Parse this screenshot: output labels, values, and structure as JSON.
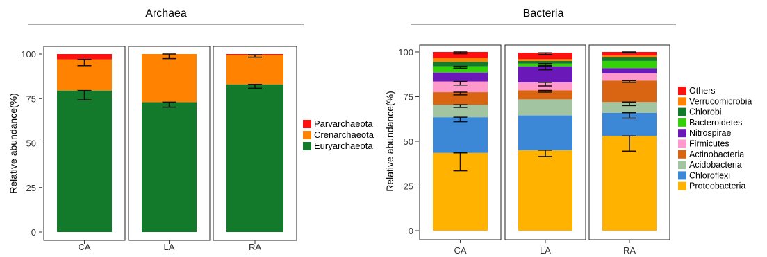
{
  "chart_data": [
    {
      "type": "bar",
      "stacked": true,
      "title": "Archaea",
      "xlabel": "",
      "ylabel": "Relative abundance(%)",
      "ylim": [
        0,
        100
      ],
      "yticks": [
        0,
        25,
        50,
        75,
        100
      ],
      "categories": [
        "CA",
        "LA",
        "RA"
      ],
      "legend_position": "right",
      "series": [
        {
          "name": "Euryarchaeota",
          "color": "#127A2A",
          "values": [
            79.5,
            73.0,
            83.0
          ],
          "error": [
            5.2,
            2.8,
            2.2
          ]
        },
        {
          "name": "Crenarchaeota",
          "color": "#FF8200",
          "values": [
            17.5,
            27.0,
            16.5
          ],
          "error": [
            3.5,
            2.6,
            1.3
          ]
        },
        {
          "name": "Parvarchaeota",
          "color": "#FF1010",
          "values": [
            3.0,
            0.0,
            0.5
          ],
          "error": [
            0.0,
            0.0,
            0.0
          ]
        }
      ]
    },
    {
      "type": "bar",
      "stacked": true,
      "title": "Bacteria",
      "xlabel": "",
      "ylabel": "Relative abundance(%)",
      "ylim": [
        0,
        100
      ],
      "yticks": [
        0,
        25,
        50,
        75,
        100
      ],
      "categories": [
        "CA",
        "LA",
        "RA"
      ],
      "legend_position": "right",
      "series": [
        {
          "name": "Proteobacteria",
          "color": "#FFB300",
          "values": [
            43.5,
            45.0,
            53.0
          ],
          "error": [
            10.0,
            3.5,
            8.5
          ]
        },
        {
          "name": "Chloroflexi",
          "color": "#3C87D6",
          "values": [
            20.0,
            19.5,
            13.0
          ],
          "error": [
            2.5,
            0.0,
            3.0
          ]
        },
        {
          "name": "Acidobacteria",
          "color": "#A3C4A0",
          "values": [
            7.0,
            9.0,
            6.0
          ],
          "error": [
            1.5,
            0.0,
            2.0
          ]
        },
        {
          "name": "Actinobacteria",
          "color": "#D96412",
          "values": [
            7.0,
            5.0,
            12.0
          ],
          "error": [
            1.5,
            1.0,
            1.0
          ]
        },
        {
          "name": "Firmicutes",
          "color": "#FF99CC",
          "values": [
            6.0,
            4.5,
            4.0
          ],
          "error": [
            2.0,
            2.0,
            0.0
          ]
        },
        {
          "name": "Nitrospirae",
          "color": "#6A19B8",
          "values": [
            5.0,
            9.0,
            3.0
          ],
          "error": [
            0.0,
            2.0,
            0.0
          ]
        },
        {
          "name": "Bacteroidetes",
          "color": "#33D10A",
          "values": [
            3.5,
            1.5,
            4.0
          ],
          "error": [
            1.0,
            1.0,
            0.0
          ]
        },
        {
          "name": "Chlorobi",
          "color": "#127A2A",
          "values": [
            2.5,
            1.5,
            2.0
          ],
          "error": [
            0.0,
            0.0,
            0.0
          ]
        },
        {
          "name": "Verrucomicrobia",
          "color": "#FF8200",
          "values": [
            2.0,
            1.0,
            1.0
          ],
          "error": [
            0.0,
            0.0,
            0.0
          ]
        },
        {
          "name": "Others",
          "color": "#FF1010",
          "values": [
            3.5,
            3.5,
            2.0
          ],
          "error": [
            1.0,
            1.0,
            0.5
          ]
        }
      ]
    }
  ]
}
